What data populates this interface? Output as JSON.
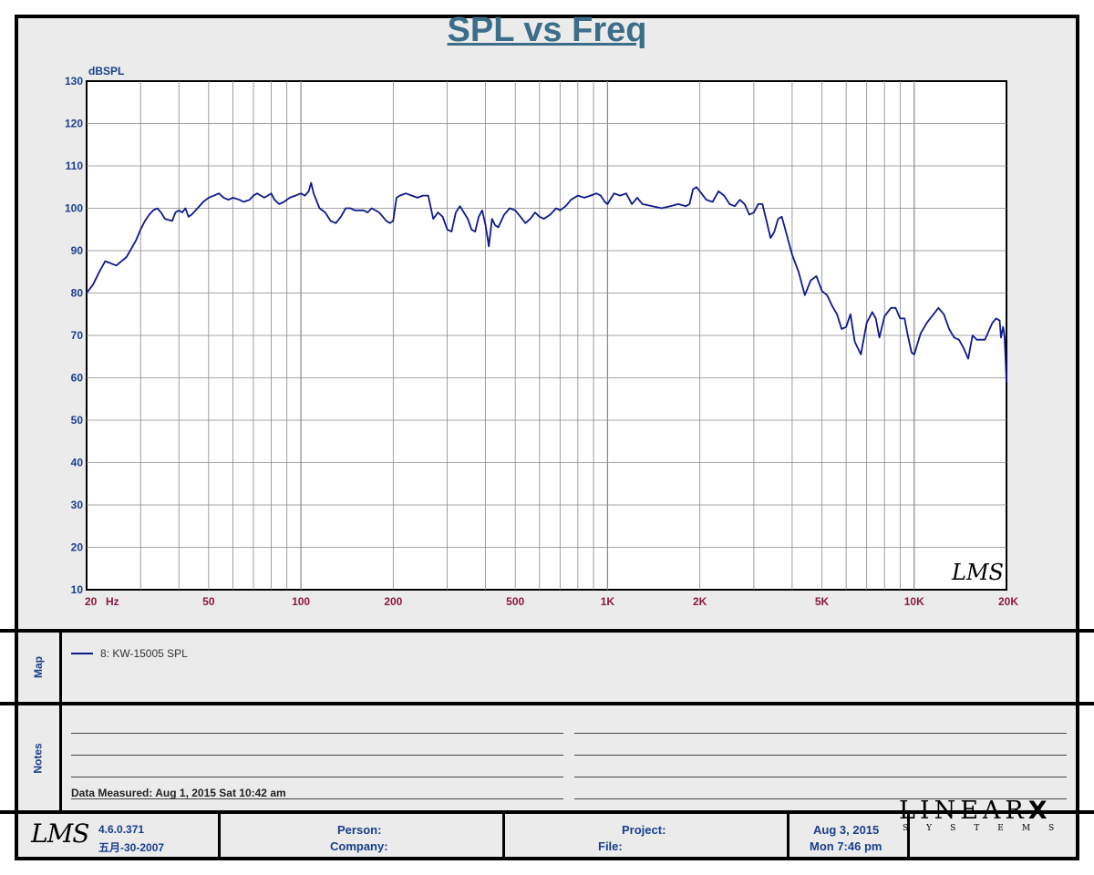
{
  "chart_data": {
    "type": "line",
    "title": "SPL vs Freq",
    "ylabel": "dBSPL",
    "ylim": [
      10,
      130
    ],
    "yticks": [
      "10",
      "20",
      "30",
      "40",
      "50",
      "60",
      "70",
      "80",
      "90",
      "100",
      "110",
      "120",
      "130"
    ],
    "xscale": "log",
    "xlim": [
      20,
      20000
    ],
    "xticks": [
      {
        "value": 20,
        "label": "20"
      },
      {
        "value": 50,
        "label": "50"
      },
      {
        "value": 100,
        "label": "100"
      },
      {
        "value": 200,
        "label": "200"
      },
      {
        "value": 500,
        "label": "500"
      },
      {
        "value": 1000,
        "label": "1K"
      },
      {
        "value": 2000,
        "label": "2K"
      },
      {
        "value": 5000,
        "label": "5K"
      },
      {
        "value": 10000,
        "label": "10K"
      },
      {
        "value": 20000,
        "label": "20K"
      }
    ],
    "xunit": "Hz",
    "grid": true,
    "watermark": "LMS",
    "series": [
      {
        "name": "8: KW-15005 SPL",
        "color": "#0d1a8c",
        "points": [
          [
            20,
            80
          ],
          [
            21,
            82
          ],
          [
            22,
            85
          ],
          [
            23,
            87.5
          ],
          [
            24,
            87
          ],
          [
            25,
            86.5
          ],
          [
            26,
            87.5
          ],
          [
            27,
            88.5
          ],
          [
            28,
            90.5
          ],
          [
            29,
            92.5
          ],
          [
            30,
            95
          ],
          [
            31,
            97
          ],
          [
            32,
            98.5
          ],
          [
            33,
            99.5
          ],
          [
            34,
            100
          ],
          [
            35,
            99
          ],
          [
            36,
            97.5
          ],
          [
            38,
            97
          ],
          [
            39,
            99
          ],
          [
            40,
            99.5
          ],
          [
            41,
            99
          ],
          [
            42,
            100
          ],
          [
            43,
            98
          ],
          [
            44,
            98.5
          ],
          [
            46,
            100
          ],
          [
            48,
            101.5
          ],
          [
            50,
            102.5
          ],
          [
            52,
            103
          ],
          [
            54,
            103.5
          ],
          [
            56,
            102.5
          ],
          [
            58,
            102
          ],
          [
            60,
            102.5
          ],
          [
            63,
            102
          ],
          [
            65,
            101.5
          ],
          [
            68,
            102
          ],
          [
            70,
            103
          ],
          [
            72,
            103.5
          ],
          [
            74,
            103
          ],
          [
            76,
            102.5
          ],
          [
            78,
            103
          ],
          [
            80,
            103.5
          ],
          [
            82,
            102
          ],
          [
            85,
            101
          ],
          [
            88,
            101.5
          ],
          [
            92,
            102.5
          ],
          [
            96,
            103
          ],
          [
            100,
            103.5
          ],
          [
            103,
            103
          ],
          [
            106,
            104
          ],
          [
            108,
            106
          ],
          [
            110,
            103.5
          ],
          [
            115,
            100
          ],
          [
            120,
            99
          ],
          [
            125,
            97
          ],
          [
            130,
            96.5
          ],
          [
            135,
            98
          ],
          [
            140,
            100
          ],
          [
            145,
            100
          ],
          [
            150,
            99.5
          ],
          [
            160,
            99.5
          ],
          [
            165,
            99
          ],
          [
            170,
            100
          ],
          [
            180,
            99
          ],
          [
            185,
            98
          ],
          [
            190,
            97
          ],
          [
            195,
            96.5
          ],
          [
            200,
            97
          ],
          [
            205,
            102.5
          ],
          [
            210,
            103
          ],
          [
            220,
            103.5
          ],
          [
            230,
            103
          ],
          [
            240,
            102.5
          ],
          [
            250,
            103
          ],
          [
            260,
            103
          ],
          [
            270,
            97.5
          ],
          [
            280,
            99
          ],
          [
            290,
            98
          ],
          [
            300,
            95
          ],
          [
            310,
            94.5
          ],
          [
            320,
            99
          ],
          [
            330,
            100.5
          ],
          [
            340,
            99
          ],
          [
            350,
            97.5
          ],
          [
            360,
            95
          ],
          [
            370,
            94.5
          ],
          [
            380,
            98
          ],
          [
            390,
            99.5
          ],
          [
            400,
            96
          ],
          [
            410,
            91
          ],
          [
            420,
            97.5
          ],
          [
            430,
            96
          ],
          [
            440,
            95.5
          ],
          [
            460,
            98.5
          ],
          [
            480,
            100
          ],
          [
            500,
            99.5
          ],
          [
            520,
            98
          ],
          [
            540,
            96.5
          ],
          [
            560,
            97.5
          ],
          [
            580,
            99
          ],
          [
            600,
            98
          ],
          [
            620,
            97.5
          ],
          [
            650,
            98.5
          ],
          [
            680,
            100
          ],
          [
            700,
            99.5
          ],
          [
            730,
            100.5
          ],
          [
            760,
            102
          ],
          [
            800,
            103
          ],
          [
            840,
            102.5
          ],
          [
            880,
            103
          ],
          [
            920,
            103.5
          ],
          [
            950,
            103
          ],
          [
            980,
            101.5
          ],
          [
            1000,
            101
          ],
          [
            1050,
            103.5
          ],
          [
            1100,
            103
          ],
          [
            1150,
            103.5
          ],
          [
            1200,
            101
          ],
          [
            1250,
            102.5
          ],
          [
            1300,
            101
          ],
          [
            1400,
            100.5
          ],
          [
            1500,
            100
          ],
          [
            1600,
            100.5
          ],
          [
            1700,
            101
          ],
          [
            1800,
            100.5
          ],
          [
            1850,
            101
          ],
          [
            1900,
            104.5
          ],
          [
            1950,
            105
          ],
          [
            2000,
            104
          ],
          [
            2100,
            102
          ],
          [
            2200,
            101.5
          ],
          [
            2300,
            104
          ],
          [
            2400,
            103
          ],
          [
            2500,
            101
          ],
          [
            2600,
            100.5
          ],
          [
            2700,
            102
          ],
          [
            2800,
            101
          ],
          [
            2900,
            98.5
          ],
          [
            3000,
            99
          ],
          [
            3100,
            101
          ],
          [
            3200,
            101
          ],
          [
            3300,
            97
          ],
          [
            3400,
            93
          ],
          [
            3500,
            94.5
          ],
          [
            3600,
            97.5
          ],
          [
            3700,
            98
          ],
          [
            3800,
            95
          ],
          [
            4000,
            89
          ],
          [
            4200,
            85
          ],
          [
            4400,
            79.5
          ],
          [
            4600,
            83
          ],
          [
            4800,
            84
          ],
          [
            5000,
            80.5
          ],
          [
            5200,
            79.5
          ],
          [
            5400,
            77
          ],
          [
            5600,
            75
          ],
          [
            5800,
            71.5
          ],
          [
            6000,
            72
          ],
          [
            6200,
            75
          ],
          [
            6400,
            68.5
          ],
          [
            6700,
            65.5
          ],
          [
            7000,
            73
          ],
          [
            7300,
            75.5
          ],
          [
            7500,
            74
          ],
          [
            7700,
            69.5
          ],
          [
            8000,
            74.5
          ],
          [
            8400,
            76.5
          ],
          [
            8700,
            76.5
          ],
          [
            9000,
            74
          ],
          [
            9300,
            74
          ],
          [
            9500,
            70.5
          ],
          [
            9800,
            66
          ],
          [
            10000,
            65.5
          ],
          [
            10500,
            70.5
          ],
          [
            11000,
            73
          ],
          [
            12000,
            76.5
          ],
          [
            12500,
            75
          ],
          [
            13000,
            71.5
          ],
          [
            13500,
            69.5
          ],
          [
            14000,
            69
          ],
          [
            14500,
            67
          ],
          [
            15000,
            64.5
          ],
          [
            15500,
            70
          ],
          [
            16000,
            69
          ],
          [
            17000,
            69
          ],
          [
            18000,
            73
          ],
          [
            18500,
            74
          ],
          [
            19000,
            73.5
          ],
          [
            19200,
            69.5
          ],
          [
            19500,
            72
          ],
          [
            19700,
            70
          ],
          [
            19850,
            65
          ],
          [
            20000,
            59
          ]
        ]
      }
    ]
  },
  "map": {
    "label": "Map",
    "legend_entry": "8: KW-15005 SPL"
  },
  "notes": {
    "label": "Notes",
    "measured": "Data Measured: Aug  1, 2015  Sat 10:42 am"
  },
  "footer": {
    "logo_text": "LMS",
    "version": "4.6.0.371",
    "build_date": "五月-30-2007",
    "person_label": "Person:",
    "company_label": "Company:",
    "project_label": "Project:",
    "file_label": "File:",
    "date": "Aug  3, 2015",
    "time": "Mon  7:46 pm",
    "brand_main": "LINEAR",
    "brand_x": "X",
    "brand_sub": "SYSTEMS"
  },
  "colors": {
    "title": "#3d6e89",
    "axis_text": "#1a3f8a",
    "x_tick_text": "#8b1a3c",
    "grid": "#888888",
    "curve": "#0d1a8c",
    "background": "#ebebeb"
  }
}
